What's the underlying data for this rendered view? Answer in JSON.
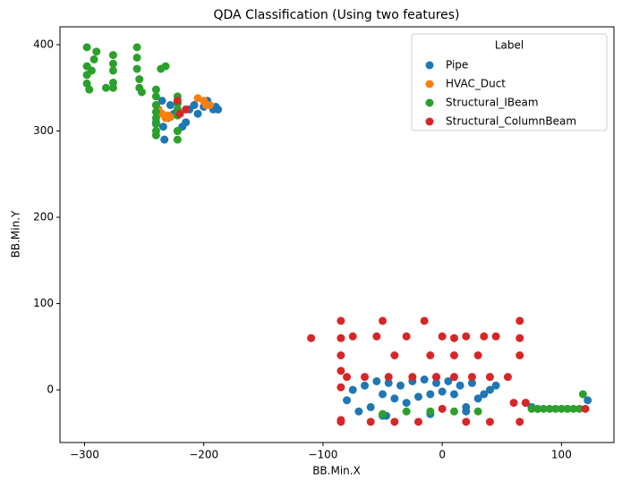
{
  "chart_data": {
    "type": "scatter",
    "title": "QDA Classification (Using two features)",
    "x_label": "BB.Min.X",
    "y_label": "BB.Min.Y",
    "xlim": [
      -320.6,
      144
    ],
    "ylim": [
      -61,
      420.7
    ],
    "xticks": [
      {
        "value": -300,
        "label": "−300"
      },
      {
        "value": -200,
        "label": "−200"
      },
      {
        "value": -100,
        "label": "−100"
      },
      0,
      100
    ],
    "yticks": [
      0,
      100,
      200,
      300,
      400
    ],
    "grid": false,
    "legend_title": "Label",
    "legend_position": "upper right",
    "series": [
      {
        "name": "Pipe",
        "color": "#1f77b4",
        "x": [
          -240,
          -238,
          -235,
          -233,
          -230,
          -228,
          -225,
          -222,
          -218,
          -215,
          -212,
          -208,
          -205,
          -200,
          -197,
          -195,
          -192,
          -190,
          -188,
          -234,
          -80,
          -75,
          -70,
          -65,
          -60,
          -55,
          -50,
          -47,
          -45,
          -40,
          -35,
          -30,
          -25,
          -20,
          -15,
          -10,
          -5,
          0,
          5,
          10,
          15,
          20,
          25,
          30,
          35,
          40,
          45,
          70,
          75,
          80,
          122,
          -50,
          -10,
          20,
          -5
        ],
        "values": [
          310,
          325,
          335,
          290,
          315,
          330,
          320,
          300,
          305,
          310,
          325,
          330,
          320,
          328,
          335,
          330,
          325,
          328,
          325,
          305,
          -12,
          0,
          -25,
          5,
          -20,
          10,
          -5,
          -30,
          8,
          -10,
          5,
          -15,
          10,
          -8,
          12,
          -5,
          8,
          -2,
          10,
          -5,
          5,
          -20,
          8,
          -10,
          -5,
          0,
          5,
          -15,
          -20,
          -22,
          -12,
          -30,
          -28,
          -25,
          15
        ]
      },
      {
        "name": "HVAC_Duct",
        "color": "#ff7f0e",
        "x": [
          -240,
          -238,
          -235,
          -232,
          -230,
          -228,
          -205,
          -200,
          -198,
          -195
        ],
        "values": [
          330,
          325,
          320,
          315,
          318,
          316,
          338,
          335,
          330,
          330
        ]
      },
      {
        "name": "Structural_IBeam",
        "color": "#2ca02c",
        "x": [
          -298,
          -298,
          -298,
          -298,
          -296,
          -294,
          -292,
          -290,
          -282,
          -276,
          -276,
          -276,
          -276,
          -276,
          -256,
          -256,
          -256,
          -254,
          -254,
          -252,
          -240,
          -240,
          -240,
          -240,
          -240,
          -240,
          -240,
          -240,
          -236,
          -232,
          -222,
          -222,
          -222,
          -222,
          -222,
          -222,
          -50,
          -30,
          -10,
          10,
          30,
          75,
          80,
          85,
          90,
          95,
          100,
          105,
          110,
          115,
          118
        ],
        "values": [
          397,
          375,
          365,
          355,
          348,
          370,
          383,
          392,
          350,
          388,
          378,
          370,
          356,
          350,
          397,
          385,
          372,
          360,
          350,
          345,
          348,
          340,
          330,
          322,
          315,
          308,
          300,
          295,
          372,
          375,
          340,
          332,
          325,
          318,
          300,
          290,
          -28,
          -25,
          -25,
          -25,
          -25,
          -22,
          -22,
          -22,
          -22,
          -22,
          -22,
          -22,
          -22,
          -22,
          -5
        ]
      },
      {
        "name": "Structural_ColumnBeam",
        "color": "#d62728",
        "x": [
          -222,
          -220,
          -215,
          -110,
          -85,
          -85,
          -85,
          -85,
          -85,
          -85,
          -80,
          -75,
          -65,
          -55,
          -50,
          -45,
          -40,
          -30,
          -25,
          -15,
          -10,
          -5,
          0,
          10,
          10,
          10,
          20,
          25,
          30,
          35,
          40,
          45,
          55,
          65,
          65,
          65,
          60,
          70,
          120,
          -85,
          -60,
          -40,
          -20,
          0,
          20,
          40,
          65
        ],
        "values": [
          335,
          320,
          325,
          60,
          80,
          60,
          40,
          22,
          3,
          -35,
          15,
          62,
          15,
          62,
          80,
          15,
          40,
          62,
          15,
          80,
          40,
          15,
          62,
          60,
          40,
          15,
          62,
          15,
          40,
          62,
          15,
          62,
          15,
          80,
          40,
          60,
          -15,
          -15,
          -22,
          -37,
          -37,
          -37,
          -37,
          -22,
          -37,
          -37,
          -37
        ]
      }
    ]
  }
}
